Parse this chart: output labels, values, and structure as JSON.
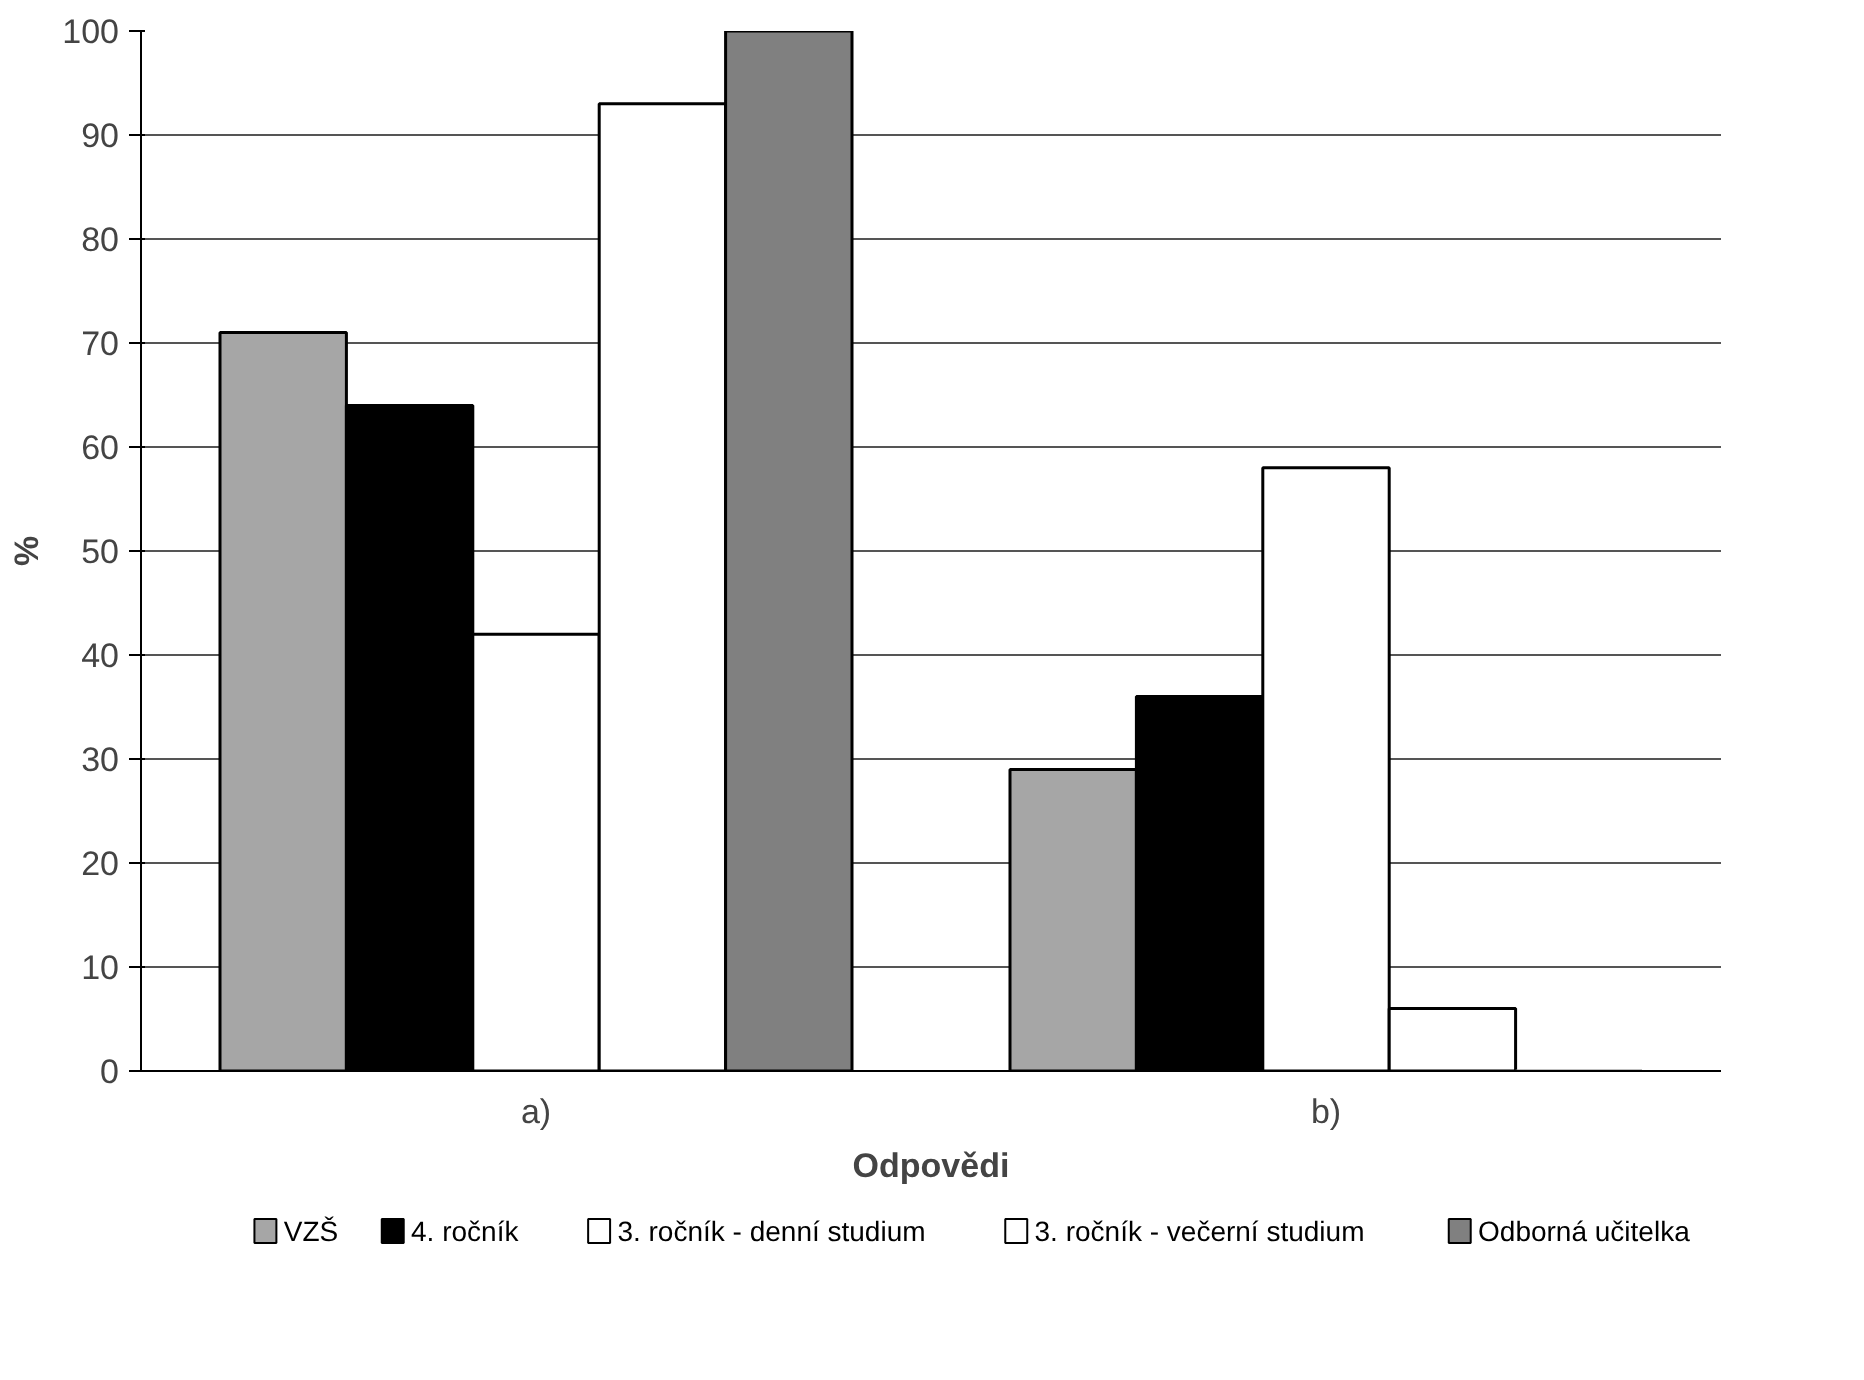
{
  "chart_data": {
    "type": "bar",
    "xlabel": "Odpovědi",
    "ylabel": "%",
    "categories": [
      "a)",
      "b)"
    ],
    "series": [
      {
        "name": "VZŠ",
        "color": "#a6a6a6",
        "values": [
          71,
          29
        ]
      },
      {
        "name": "4. ročník",
        "color": "#000000",
        "values": [
          64,
          36
        ]
      },
      {
        "name": "3. ročník - denní studium",
        "color": "#ffffff",
        "values": [
          42,
          58
        ]
      },
      {
        "name": "3. ročník - večerní studium",
        "color": "#ffffff",
        "values": [
          93,
          6
        ]
      },
      {
        "name": "Odborná učitelka",
        "color": "#808080",
        "values": [
          100,
          0
        ]
      }
    ],
    "ylim": [
      0,
      100
    ],
    "yticks": [
      0,
      10,
      20,
      30,
      40,
      50,
      60,
      70,
      80,
      90,
      100
    ],
    "grid": "y",
    "legend": "bottom"
  }
}
